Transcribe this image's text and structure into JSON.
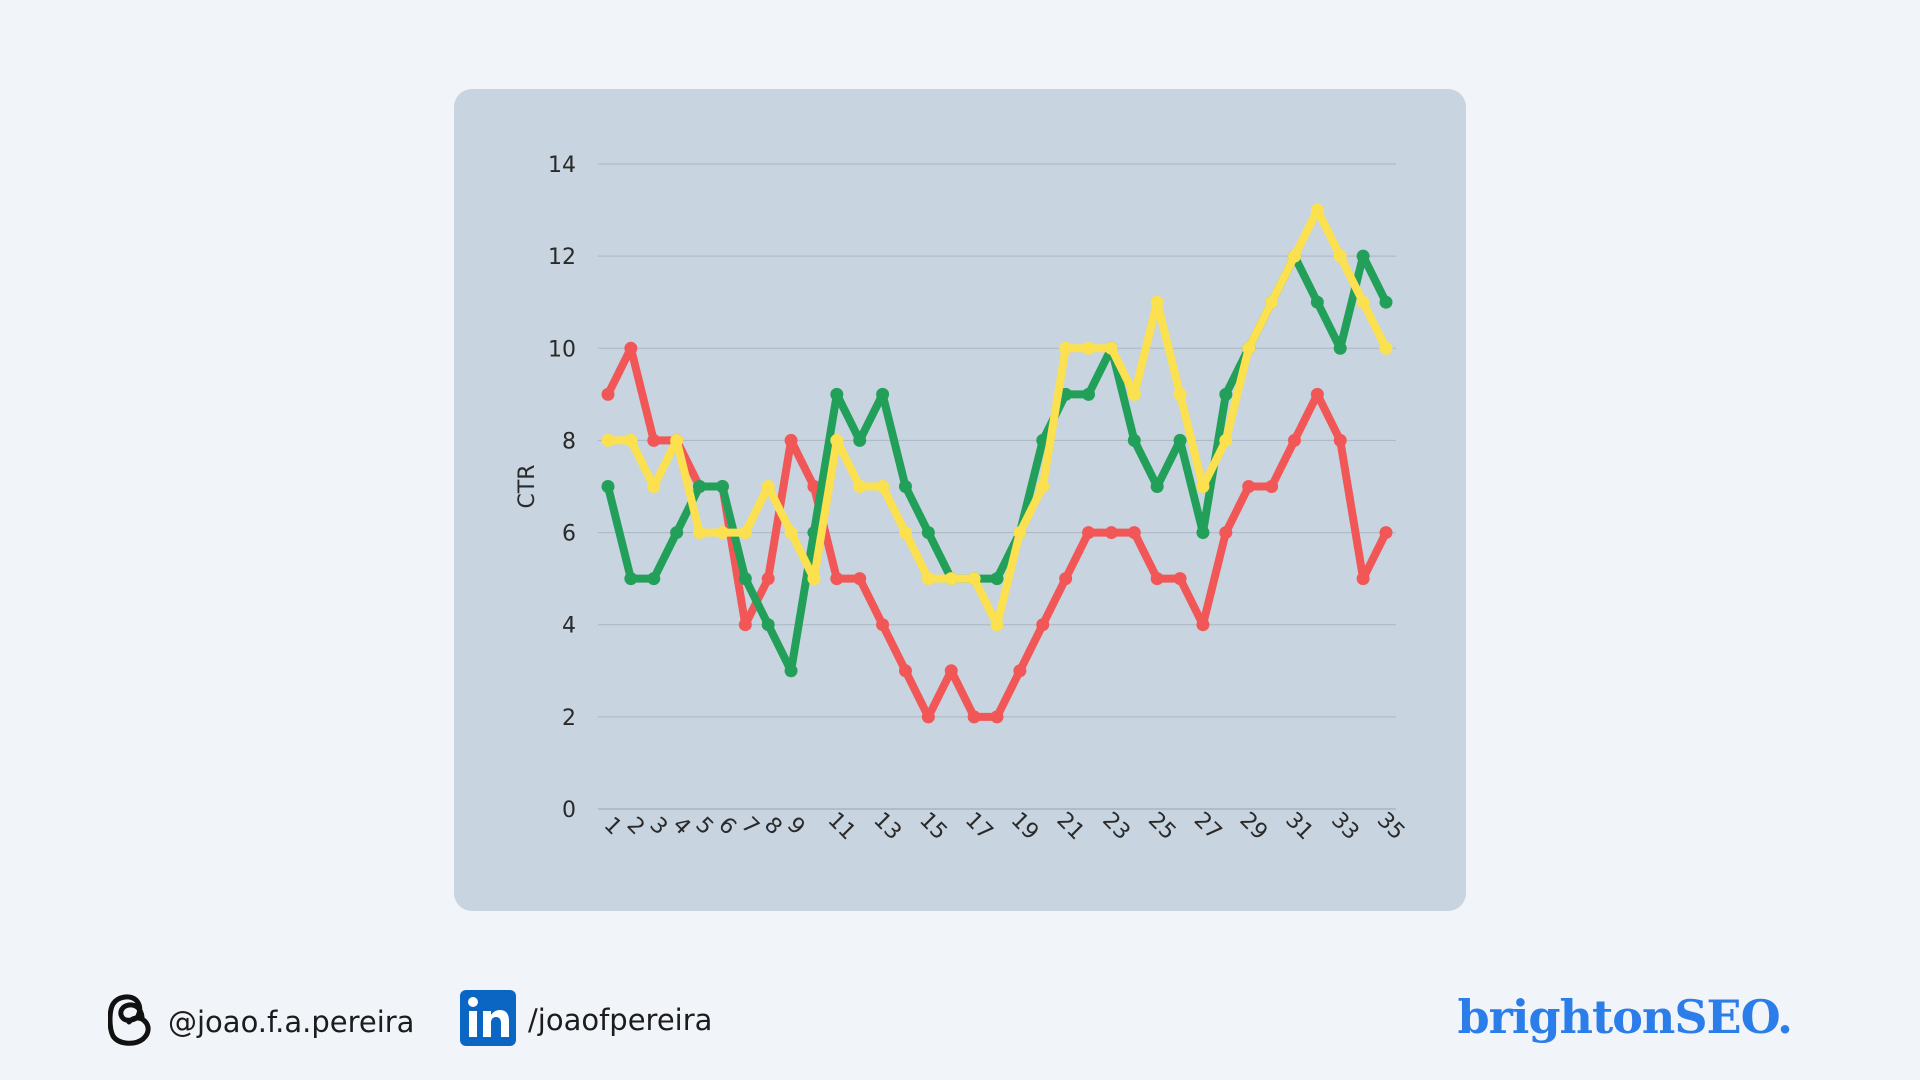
{
  "chart_data": {
    "type": "line",
    "title": "",
    "xlabel": "",
    "ylabel": "CTR",
    "ylim": [
      0,
      14
    ],
    "yticks": [
      0,
      2,
      4,
      6,
      8,
      10,
      12,
      14
    ],
    "x": [
      1,
      2,
      3,
      4,
      5,
      6,
      7,
      8,
      9,
      10,
      11,
      12,
      13,
      14,
      15,
      16,
      17,
      18,
      19,
      20,
      21,
      22,
      23,
      24,
      25,
      26,
      27,
      28,
      29,
      30,
      31,
      32,
      33,
      34,
      35
    ],
    "x_tick_labels": [
      "1",
      "2",
      "3",
      "4",
      "5",
      "6",
      "7",
      "8",
      "9",
      "11",
      "13",
      "15",
      "17",
      "19",
      "21",
      "23",
      "25",
      "27",
      "29",
      "31",
      "33",
      "35"
    ],
    "grid": true,
    "series": [
      {
        "color": "#f25757",
        "values": [
          9,
          10,
          8,
          8,
          7,
          7,
          4,
          5,
          8,
          7,
          5,
          5,
          4,
          3,
          2,
          3,
          2,
          2,
          3,
          4,
          5,
          6,
          6,
          6,
          5,
          5,
          4,
          6,
          7,
          7,
          8,
          9,
          8,
          5,
          6
        ]
      },
      {
        "color": "#22a05a",
        "values": [
          7,
          5,
          5,
          6,
          7,
          7,
          5,
          4,
          3,
          6,
          9,
          8,
          9,
          7,
          6,
          5,
          5,
          5,
          6,
          8,
          9,
          9,
          10,
          8,
          7,
          8,
          6,
          9,
          10,
          11,
          12,
          11,
          10,
          12,
          11
        ]
      },
      {
        "color": "#fbe04f",
        "values": [
          8,
          8,
          7,
          8,
          6,
          6,
          6,
          7,
          6,
          5,
          8,
          7,
          7,
          6,
          5,
          5,
          5,
          4,
          6,
          7,
          10,
          10,
          10,
          9,
          11,
          9,
          7,
          8,
          10,
          11,
          12,
          13,
          12,
          11,
          10
        ]
      }
    ]
  },
  "footer": {
    "threads_handle": "@joao.f.a.pereira",
    "linkedin_handle": "/joaofpereira",
    "brand": "brightonSEO."
  },
  "icons": {
    "threads": "threads-icon",
    "linkedin": "linkedin-icon"
  },
  "colors": {
    "background": "#f1f5fa",
    "panel": "#c8d4e0",
    "brand": "#2b7de9",
    "linkedin": "#0a66c2"
  }
}
